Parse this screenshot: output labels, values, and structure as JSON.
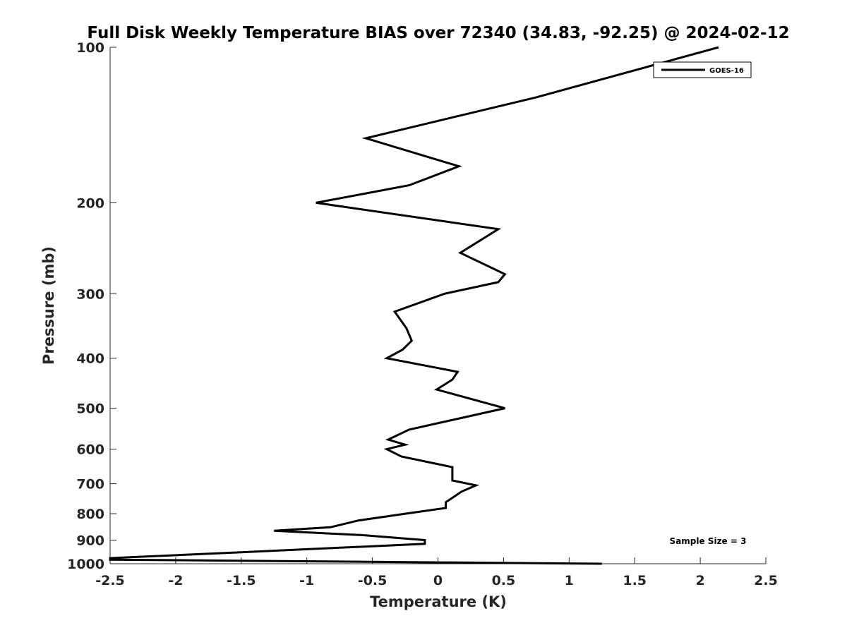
{
  "chart_data": {
    "type": "line",
    "title": "Full Disk Weekly Temperature BIAS over 72340 (34.83, -92.25) @ 2024-02-12",
    "xlabel": "Temperature (K)",
    "ylabel": "Pressure (mb)",
    "xlim": [
      -2.5,
      2.5
    ],
    "ylim": [
      1000,
      100
    ],
    "y_scale": "log",
    "x_ticks": [
      -2.5,
      -2,
      -1.5,
      -1,
      -0.5,
      0,
      0.5,
      1,
      1.5,
      2,
      2.5
    ],
    "x_tick_labels": [
      "-2.5",
      "-2",
      "-1.5",
      "-1",
      "-0.5",
      "0",
      "0.5",
      "1",
      "1.5",
      "2",
      "2.5"
    ],
    "y_ticks": [
      100,
      200,
      300,
      400,
      500,
      600,
      700,
      800,
      900,
      1000
    ],
    "y_tick_labels": [
      "100",
      "200",
      "300",
      "400",
      "500",
      "600",
      "700",
      "800",
      "900",
      "1000"
    ],
    "grid": false,
    "legend_position": "top-right",
    "series": [
      {
        "name": "GOES-16",
        "color": "#000000",
        "points": [
          {
            "x": 2.14,
            "p": 100
          },
          {
            "x": 0.75,
            "p": 125
          },
          {
            "x": -0.55,
            "p": 150
          },
          {
            "x": 0.16,
            "p": 170
          },
          {
            "x": -0.22,
            "p": 185
          },
          {
            "x": -0.93,
            "p": 200
          },
          {
            "x": 0.46,
            "p": 225
          },
          {
            "x": 0.17,
            "p": 250
          },
          {
            "x": 0.51,
            "p": 275
          },
          {
            "x": 0.46,
            "p": 285
          },
          {
            "x": 0.05,
            "p": 300
          },
          {
            "x": -0.33,
            "p": 325
          },
          {
            "x": -0.24,
            "p": 350
          },
          {
            "x": -0.2,
            "p": 370
          },
          {
            "x": -0.27,
            "p": 385
          },
          {
            "x": -0.39,
            "p": 400
          },
          {
            "x": 0.15,
            "p": 425
          },
          {
            "x": 0.11,
            "p": 440
          },
          {
            "x": -0.01,
            "p": 460
          },
          {
            "x": 0.51,
            "p": 500
          },
          {
            "x": -0.22,
            "p": 550
          },
          {
            "x": -0.38,
            "p": 575
          },
          {
            "x": -0.25,
            "p": 588
          },
          {
            "x": -0.39,
            "p": 600
          },
          {
            "x": -0.28,
            "p": 620
          },
          {
            "x": 0.11,
            "p": 650
          },
          {
            "x": 0.11,
            "p": 690
          },
          {
            "x": 0.29,
            "p": 705
          },
          {
            "x": 0.18,
            "p": 725
          },
          {
            "x": 0.06,
            "p": 760
          },
          {
            "x": 0.06,
            "p": 780
          },
          {
            "x": -0.25,
            "p": 800
          },
          {
            "x": -0.61,
            "p": 825
          },
          {
            "x": -0.82,
            "p": 850
          },
          {
            "x": -1.25,
            "p": 863
          },
          {
            "x": -0.58,
            "p": 880
          },
          {
            "x": -0.1,
            "p": 900
          },
          {
            "x": -0.1,
            "p": 915
          },
          {
            "x": -1.5,
            "p": 950
          },
          {
            "x": -2.5,
            "p": 975
          },
          {
            "x": -2.5,
            "p": 982
          },
          {
            "x": 1.25,
            "p": 1000
          }
        ]
      }
    ],
    "annotations": [
      {
        "text": "Sample Size = 3",
        "position": "bottom-right"
      }
    ]
  }
}
